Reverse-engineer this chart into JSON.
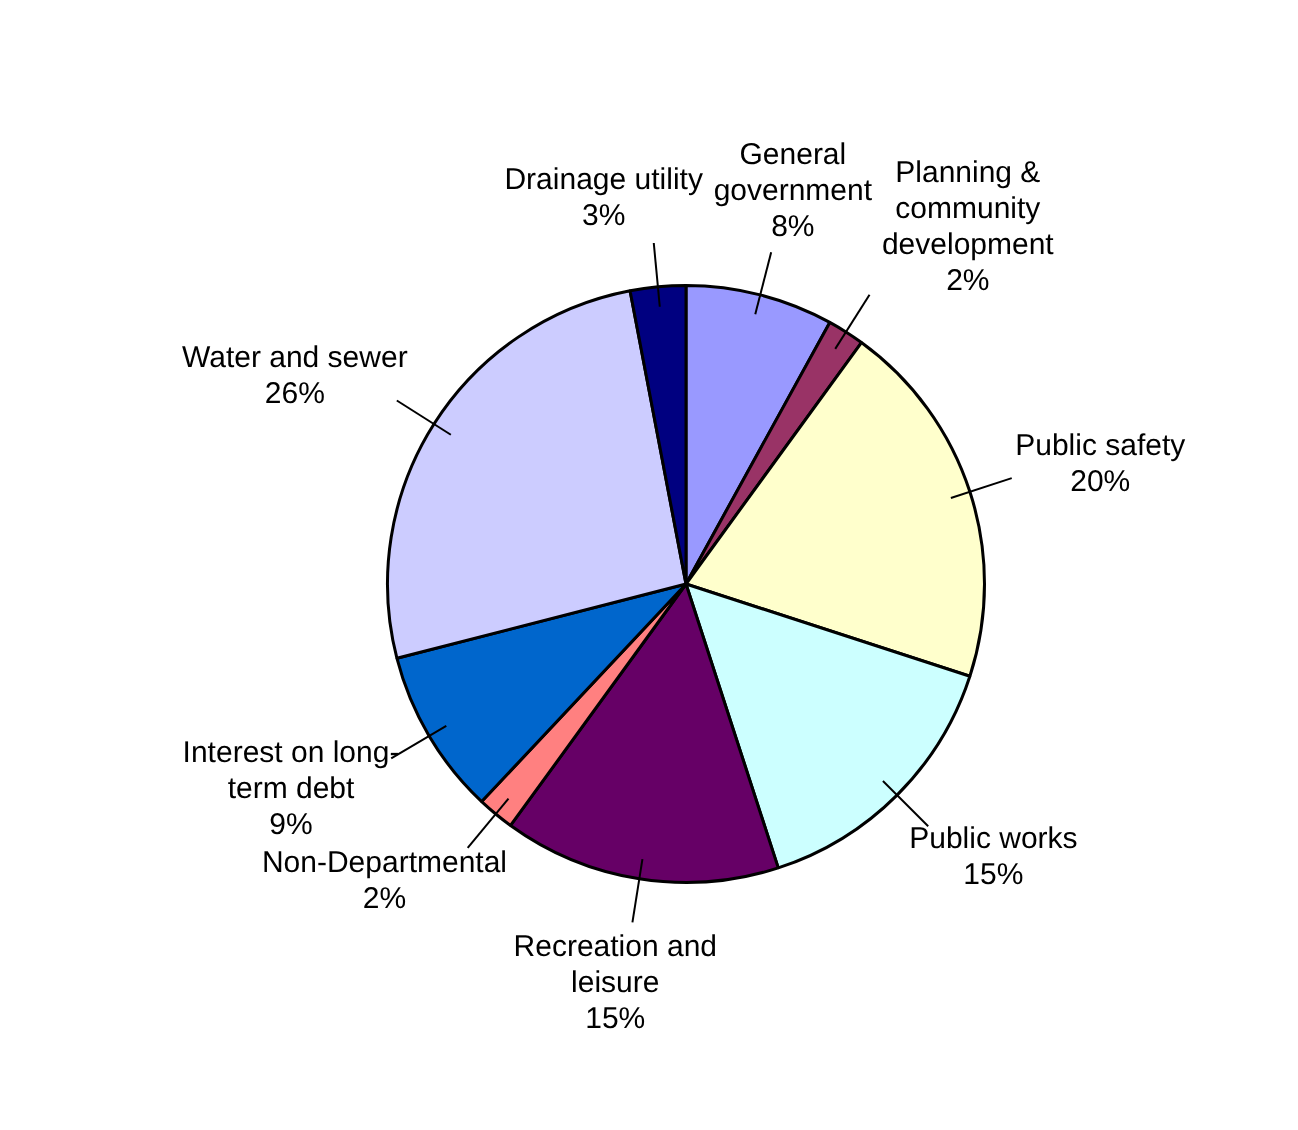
{
  "chart_data": {
    "type": "pie",
    "categories": [
      "General government",
      "Planning & community development",
      "Public safety",
      "Public works",
      "Recreation and leisure",
      "Non-Departmental",
      "Interest on long-term debt",
      "Water and sewer",
      "Drainage utility"
    ],
    "values": [
      8,
      2,
      20,
      15,
      15,
      2,
      9,
      26,
      3
    ],
    "value_labels": [
      "8%",
      "2%",
      "20%",
      "15%",
      "15%",
      "2%",
      "9%",
      "26%",
      "3%"
    ],
    "colors": [
      "#9999ff",
      "#993366",
      "#ffffcc",
      "#ccffff",
      "#660066",
      "#ff8080",
      "#0066cc",
      "#ccccff",
      "#000080"
    ],
    "legend": false
  }
}
